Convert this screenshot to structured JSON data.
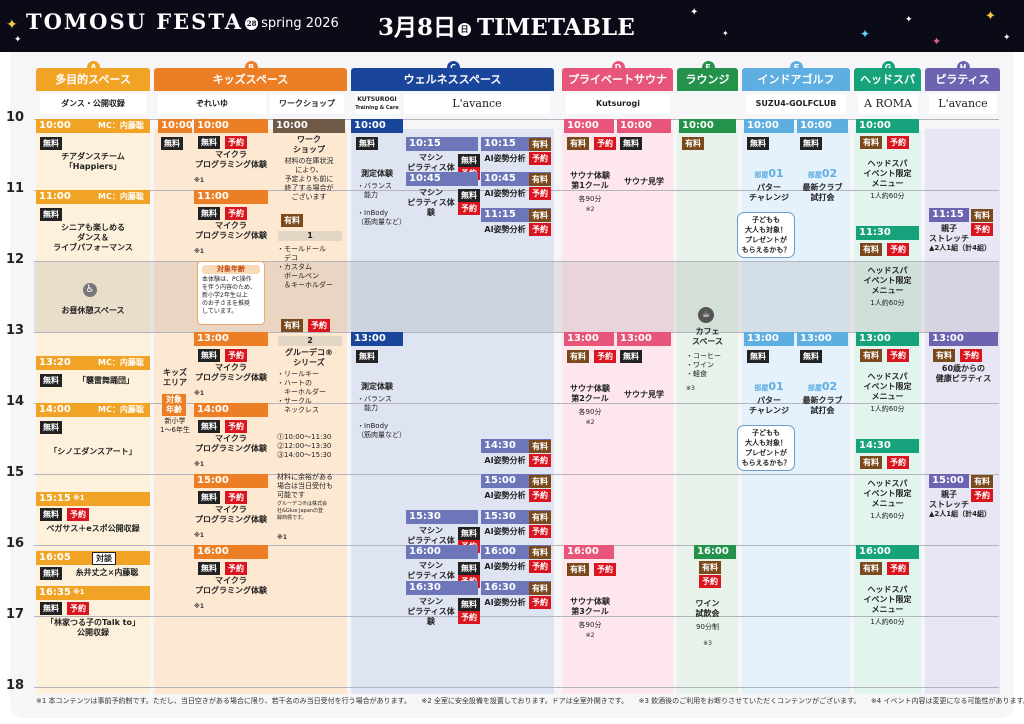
{
  "header": {
    "event": "TOMOSU FESTA",
    "event_mark": "28",
    "season": "spring 2026",
    "date": "3月8日",
    "weekday": "日",
    "title": "TIMETABLE"
  },
  "hours": [
    "10",
    "11",
    "12",
    "13",
    "14",
    "15",
    "16",
    "17",
    "18"
  ],
  "columns": [
    {
      "id": "A",
      "name": "多目的スペース",
      "color": "#f0a324"
    },
    {
      "id": "B",
      "name": "キッズスペース",
      "color": "#ec7f25"
    },
    {
      "id": "C",
      "name": "ウェルネススペース",
      "color": "#19459b"
    },
    {
      "id": "D",
      "name": "プライベートサウナ",
      "color": "#e7557a"
    },
    {
      "id": "E",
      "name": "ラウンジ",
      "color": "#24924a"
    },
    {
      "id": "F",
      "name": "インドアゴルフ",
      "color": "#5eaee2"
    },
    {
      "id": "G",
      "name": "ヘッドスパ",
      "color": "#16a27a"
    },
    {
      "id": "H",
      "name": "ピラティス",
      "color": "#6c64b1"
    }
  ],
  "sublabels": {
    "a": "ダンス・公開収録",
    "b1": "ぞれいゆ",
    "b2": "ワークショップ",
    "c1": "KUTSUROGI",
    "c1b": "Training & Care",
    "c2": "L'avance",
    "d": "Kutsurogi",
    "f": "SUZU4-GOLFCLUB",
    "g": "A ROMA",
    "h": "L'avance"
  },
  "tags": {
    "free": "無料",
    "paid": "有料",
    "rsv": "予約",
    "mark1": "※1"
  },
  "colA": {
    "t1000": "10:00",
    "mc1": "MC：内藤聡",
    "e1": "チアダンスチーム\n「Happiers」",
    "t1100": "11:00",
    "mc2": "MC：内藤聡",
    "e2": "シニアも楽しめる\nダンス＆\nライブパフォーマンス",
    "rest": "お昼休憩スペース",
    "t1320": "13:20",
    "mc3": "MC：内藤聡",
    "e3": "「襲雷舞踊団」",
    "t1400": "14:00",
    "mc4": "MC：内藤聡",
    "e4": "「シノエダンスアート」",
    "t1515": "15:15",
    "e5": "ペガサス＋eスポ公開収録",
    "t1605": "16:05",
    "talk": "対談",
    "e6": "糸井丈之×内藤聡",
    "t1635": "16:35",
    "e7": "「林家つる子のTalk to」\n公開収録"
  },
  "colB": {
    "t1000": "10:00",
    "area": "キッズ\nエリア",
    "age_tag": "対象\n年齢",
    "age": "新小学\n1〜6年生",
    "prog": "マイクラ\nプログラミング体験",
    "s1": "10:00",
    "s2": "11:00",
    "s3": "13:00",
    "s4": "14:00",
    "s5": "15:00",
    "s6": "16:00",
    "note_title": "対象年齢",
    "note": "本体験は、PC操作\nを伴う内容のため、\n新小学2年生以上\nのお子さまを推奨\nしています。",
    "ws_time": "10:00",
    "ws_title": "ワーク\nショップ",
    "ws_desc": "材料の在庫状況\nにより、\n予定よりも前に\n終了する場合が\nございます",
    "n1": "1",
    "ws1": "・モールドール\n　デコ\n・カスタム\n　ボールペン\n　＆キーホルダー",
    "n2": "2",
    "ws2_title": "グルーデコ®\nシリーズ",
    "ws2": "・リールキー\n・ハートの\n　キーホルダー\n・サークル\n　ネックレス",
    "sched": "⓵10:00〜11:30\n⓶12:00〜13:30\n⓷14:00〜15:30",
    "ws_note": "材料に余裕がある\n場合は当日受付も\n可能です",
    "ws_note2": "グルーデコ®は株式会\n社&Glue Japanの登\n録商標です。"
  },
  "colC": {
    "t1000": "10:00",
    "t1300": "13:00",
    "measure": "測定体験",
    "measure_items": "・バランス\n　能力\n\n・InBody\n（筋肉量など）",
    "pilates": "マシン\nピラティス体験",
    "ai": "AI姿勢分析",
    "p1": "10:15",
    "p2": "10:45",
    "p3": "15:30",
    "p4": "16:00",
    "p5": "16:30",
    "a1": "10:15",
    "a2": "10:45",
    "a3": "11:15",
    "a4": "14:30",
    "a5": "15:00",
    "a6": "15:30",
    "a7": "16:00",
    "a8": "16:30"
  },
  "colD": {
    "t1000a": "10:00",
    "t1000b": "10:00",
    "t1300a": "13:00",
    "t1300b": "13:00",
    "t1600": "16:00",
    "course1": "サウナ体験\n第1クール",
    "course2": "サウナ体験\n第2クール",
    "course3": "サウナ体験\n第3クール",
    "dur": "各90分",
    "mark": "※2",
    "tour": "サウナ見学"
  },
  "colE": {
    "t1000": "10:00",
    "cafe": "カフェ\nスペース",
    "menu": "・コーヒー\n・ワイン\n・軽食",
    "mark": "※3",
    "t1600": "16:00",
    "wine": "ワイン\n試飲会",
    "wine_dur": "90分制"
  },
  "colF": {
    "t1000a": "10:00",
    "t1000b": "10:00",
    "t1300a": "13:00",
    "t1300b": "13:00",
    "room": "部屋",
    "r1": "01",
    "r2": "02",
    "putter": "パター\nチャレンジ",
    "club": "最新クラブ\n試打会",
    "bubble": "子どもも\n大人も対象！\nプレゼントが\nもらえるかも？"
  },
  "colG": {
    "s1": "10:00",
    "s2": "11:30",
    "s3": "13:00",
    "s4": "14:30",
    "s5": "16:00",
    "menu": "ヘッドスパ\nイベント限定\nメニュー",
    "dur": "1人約60分"
  },
  "colH": {
    "t1115": "11:15",
    "parent": "親子\nストレッチ",
    "group": "▲2人1組（計4組）",
    "t1300": "13:00",
    "senior": "60歳からの\n健康ピラティス",
    "t1500": "15:00"
  },
  "footer": "※1 本コンテンツは事前予約制です。ただし、当日空きがある場合に限り、若干名のみ当日受付を行う場合があります。　　※2 全室に安全設備を設置しております。ドアは全室外開きです。　　※3 飲酒後のご利用をお断りさせていただくコンテンツがございます。　　※4 イベント内容は変更になる可能性があります。"
}
